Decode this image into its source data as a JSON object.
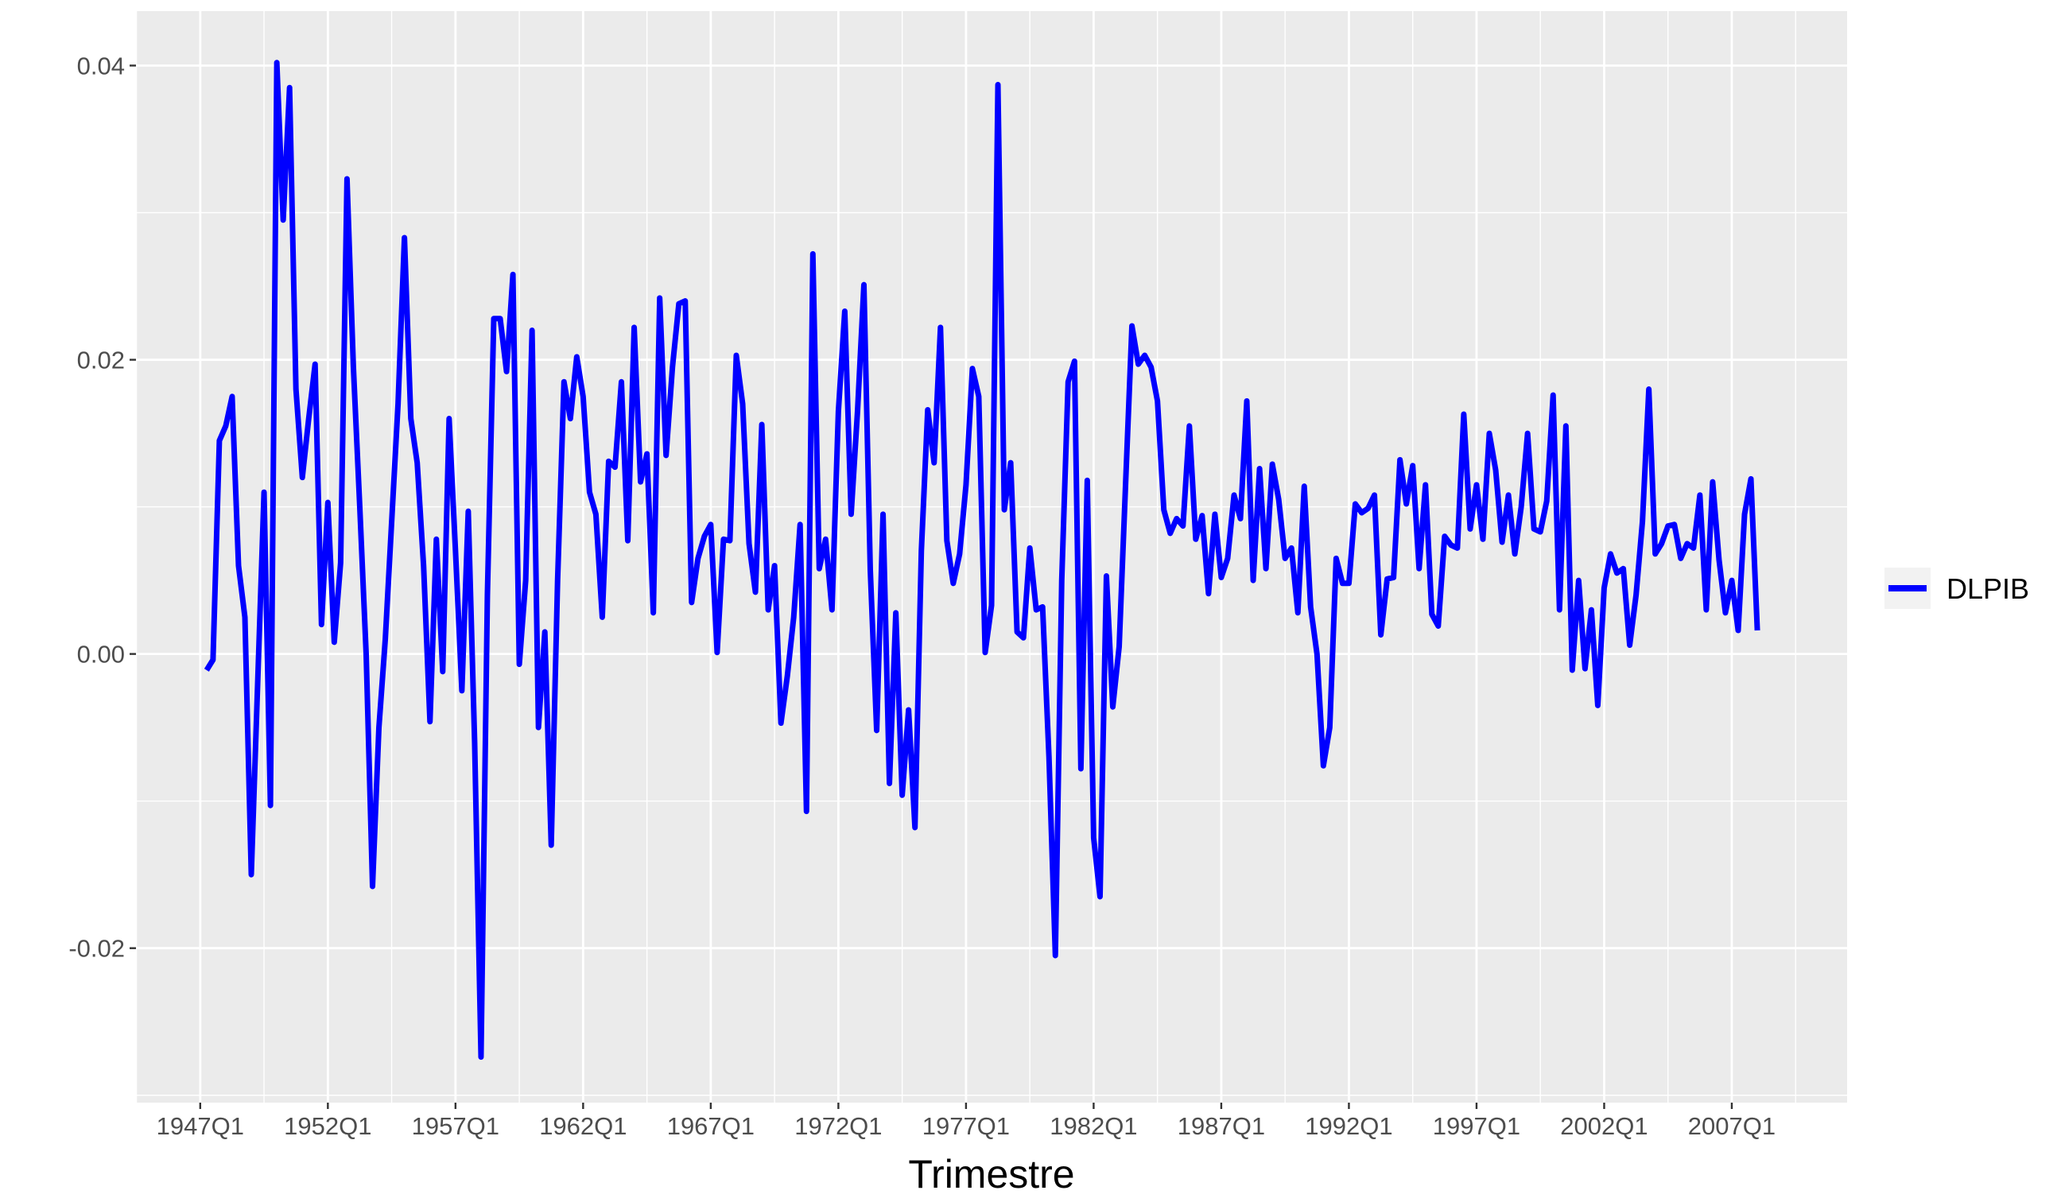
{
  "chart_data": {
    "type": "line",
    "title": "",
    "xlabel": "Trimestre",
    "ylabel": "",
    "x_start": "1947Q2",
    "x_end": "2008Q4",
    "x_tick_labels": [
      "1947Q1",
      "1952Q1",
      "1957Q1",
      "1962Q1",
      "1967Q1",
      "1972Q1",
      "1977Q1",
      "1982Q1",
      "1987Q1",
      "1992Q1",
      "1997Q1",
      "2002Q1",
      "2007Q1"
    ],
    "ylim": [
      -0.0305,
      0.0437
    ],
    "y_ticks": [
      -0.02,
      0.0,
      0.02,
      0.04
    ],
    "y_tick_labels": [
      "-0.02",
      "0.00",
      "0.02",
      "0.04"
    ],
    "grid": true,
    "legend_position": "right",
    "series": [
      {
        "name": "DLPIB",
        "color": "#0000ff",
        "values": [
          -0.0011,
          -0.0004,
          0.0145,
          0.0155,
          0.0175,
          0.006,
          0.0025,
          -0.015,
          -0.002,
          0.011,
          -0.0103,
          0.0402,
          0.0295,
          0.0385,
          0.018,
          0.012,
          0.016,
          0.0197,
          0.002,
          0.0103,
          0.0008,
          0.0062,
          0.0323,
          0.0195,
          0.01,
          0.0,
          -0.0158,
          -0.005,
          0.001,
          0.009,
          0.017,
          0.0283,
          0.016,
          0.013,
          0.006,
          -0.0046,
          0.0078,
          -0.0012,
          0.016,
          0.007,
          -0.0025,
          0.0097,
          -0.006,
          -0.0274,
          0.004,
          0.0228,
          0.0228,
          0.0192,
          0.0258,
          -0.0007,
          0.005,
          0.022,
          -0.005,
          0.0015,
          -0.013,
          0.005,
          0.0185,
          0.016,
          0.0202,
          0.0175,
          0.011,
          0.0095,
          0.0025,
          0.0131,
          0.0127,
          0.0185,
          0.0077,
          0.0222,
          0.0117,
          0.0136,
          0.0028,
          0.0242,
          0.0135,
          0.0195,
          0.0238,
          0.024,
          0.0035,
          0.0065,
          0.008,
          0.0088,
          0.0001,
          0.0078,
          0.0077,
          0.0203,
          0.017,
          0.0075,
          0.0042,
          0.0156,
          0.003,
          0.006,
          -0.0047,
          -0.0015,
          0.0025,
          0.0088,
          -0.0107,
          0.0272,
          0.0058,
          0.0078,
          0.003,
          0.0165,
          0.0233,
          0.0095,
          0.0165,
          0.0251,
          0.0057,
          -0.0052,
          0.0095,
          -0.0088,
          0.0028,
          -0.0096,
          -0.0038,
          -0.0118,
          0.007,
          0.0166,
          0.013,
          0.0222,
          0.0077,
          0.0048,
          0.0068,
          0.0115,
          0.0194,
          0.0175,
          0.0001,
          0.0033,
          0.0387,
          0.0098,
          0.013,
          0.0015,
          0.0011,
          0.0072,
          0.003,
          0.0032,
          -0.007,
          -0.0205,
          0.005,
          0.0185,
          0.0199,
          -0.0078,
          0.0118,
          -0.0125,
          -0.0165,
          0.0053,
          -0.0036,
          0.0005,
          0.0115,
          0.0223,
          0.0197,
          0.0203,
          0.0195,
          0.0172,
          0.0098,
          0.0082,
          0.0092,
          0.0087,
          0.0155,
          0.0078,
          0.0094,
          0.0041,
          0.0095,
          0.0052,
          0.0065,
          0.0108,
          0.0092,
          0.0172,
          0.005,
          0.0126,
          0.0058,
          0.0129,
          0.0105,
          0.0065,
          0.0072,
          0.0028,
          0.0114,
          0.0032,
          0.0,
          -0.0076,
          -0.005,
          0.0065,
          0.0048,
          0.0048,
          0.0102,
          0.0096,
          0.0099,
          0.0108,
          0.0013,
          0.0051,
          0.0052,
          0.0132,
          0.0102,
          0.0128,
          0.0058,
          0.0115,
          0.0027,
          0.0019,
          0.008,
          0.0074,
          0.0072,
          0.0163,
          0.0085,
          0.0115,
          0.0078,
          0.015,
          0.0125,
          0.0076,
          0.0108,
          0.0068,
          0.01,
          0.015,
          0.0085,
          0.0083,
          0.0104,
          0.0176,
          0.003,
          0.0155,
          -0.0011,
          0.005,
          -0.001,
          0.003,
          -0.0035,
          0.0045,
          0.0068,
          0.0055,
          0.0058,
          0.0006,
          0.004,
          0.009,
          0.018,
          0.0068,
          0.0075,
          0.0087,
          0.0088,
          0.0065,
          0.0075,
          0.0072,
          0.0108,
          0.003,
          0.0117,
          0.0064,
          0.0028,
          0.005,
          0.0016,
          0.0095,
          0.0119,
          0.0016
        ]
      }
    ]
  }
}
